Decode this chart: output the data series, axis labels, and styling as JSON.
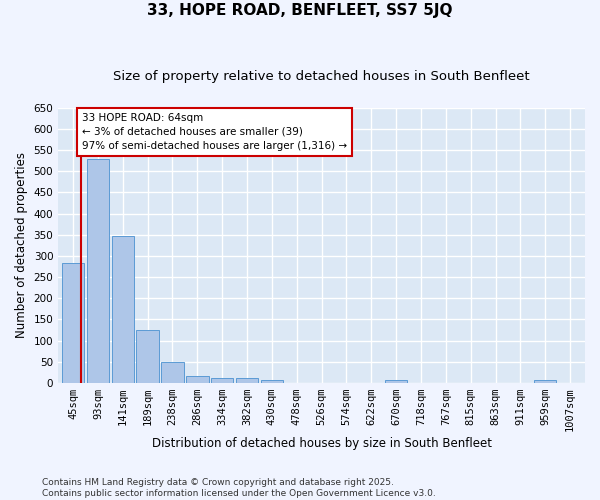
{
  "title": "33, HOPE ROAD, BENFLEET, SS7 5JQ",
  "subtitle": "Size of property relative to detached houses in South Benfleet",
  "xlabel": "Distribution of detached houses by size in South Benfleet",
  "ylabel": "Number of detached properties",
  "bins": [
    "45sqm",
    "93sqm",
    "141sqm",
    "189sqm",
    "238sqm",
    "286sqm",
    "334sqm",
    "382sqm",
    "430sqm",
    "478sqm",
    "526sqm",
    "574sqm",
    "622sqm",
    "670sqm",
    "718sqm",
    "767sqm",
    "815sqm",
    "863sqm",
    "911sqm",
    "959sqm",
    "1007sqm"
  ],
  "values": [
    283,
    530,
    348,
    125,
    50,
    16,
    11,
    11,
    7,
    0,
    0,
    0,
    0,
    6,
    0,
    0,
    0,
    0,
    0,
    6,
    0
  ],
  "bar_color": "#aec6e8",
  "bar_edge_color": "#5b9bd5",
  "subject_line_color": "#cc0000",
  "annotation_text": "33 HOPE ROAD: 64sqm\n← 3% of detached houses are smaller (39)\n97% of semi-detached houses are larger (1,316) →",
  "annotation_box_color": "#cc0000",
  "annotation_bg_color": "#ffffff",
  "ylim": [
    0,
    650
  ],
  "yticks": [
    0,
    50,
    100,
    150,
    200,
    250,
    300,
    350,
    400,
    450,
    500,
    550,
    600,
    650
  ],
  "background_color": "#dce8f5",
  "grid_color": "#ffffff",
  "fig_background": "#f0f4ff",
  "footer_text": "Contains HM Land Registry data © Crown copyright and database right 2025.\nContains public sector information licensed under the Open Government Licence v3.0.",
  "title_fontsize": 11,
  "subtitle_fontsize": 9.5,
  "axis_label_fontsize": 8.5,
  "tick_fontsize": 7.5,
  "annotation_fontsize": 7.5,
  "footer_fontsize": 6.5
}
